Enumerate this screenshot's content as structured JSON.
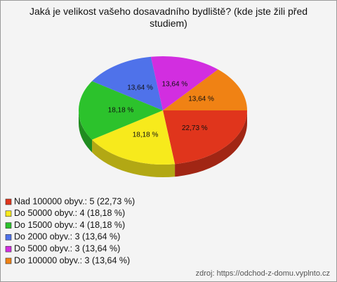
{
  "chart_data": {
    "type": "pie3d",
    "title": "Jaká je velikost vašeho dosavadního bydliště? (kde jste žili před studiem)",
    "categories": [
      "Nad 100000 obyv.: 5 (22,73 %)",
      "Do 50000 obyv.: 4 (18,18 %)",
      "Do 15000 obyv.: 4 (18,18 %)",
      "Do 2000 obyv.: 3 (13,64 %)",
      "Do 5000 obyv.: 3 (13,64 %)",
      "Do 100000 obyv.: 3 (13,64 %)"
    ],
    "values": [
      22.73,
      18.18,
      18.18,
      13.64,
      13.64,
      13.64
    ],
    "value_labels": [
      "22,73 %",
      "18,18 %",
      "18,18 %",
      "13,64 %",
      "13,64 %",
      "13,64 %"
    ],
    "colors": [
      "#e0351c",
      "#f7ea1c",
      "#2cc22c",
      "#4f72ea",
      "#d22ee0",
      "#f08214"
    ],
    "source": "zdroj: https://odchod-z-domu.vyplnto.cz"
  }
}
